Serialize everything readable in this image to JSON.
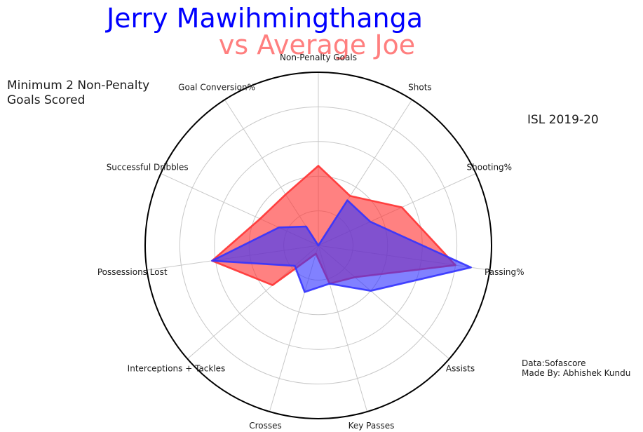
{
  "header": {
    "player_name": "Jerry Mawihmingthanga",
    "comparison": "vs Average Joe",
    "player_color": "#0000ff",
    "comparison_color": "#ff7f7f"
  },
  "notes": {
    "filter": "Minimum 2 Non-Penalty\nGoals Scored",
    "season": "ISL 2019-20",
    "credits": "Data:Sofascore\nMade By: Abhishek Kundu"
  },
  "chart_data": {
    "type": "radar",
    "axes": [
      "Non-Penalty Goals",
      "Shots",
      "Shooting%",
      "Passing%",
      "Assists",
      "Key Passes",
      "Crosses",
      "Interceptions + Tackles",
      "Possessions Lost",
      "Successful Dribbles",
      "Goal Conversion%"
    ],
    "rlim": [
      0,
      1
    ],
    "rings": [
      0.2,
      0.4,
      0.6,
      0.8,
      1.0
    ],
    "grid": true,
    "series": [
      {
        "color": "#ff3333",
        "values": [
          0.46,
          0.34,
          0.53,
          0.8,
          0.28,
          0.23,
          0.05,
          0.35,
          0.62,
          0.37,
          0.35
        ]
      },
      {
        "color": "#3333ff",
        "values": [
          0.0,
          0.31,
          0.33,
          0.89,
          0.4,
          0.23,
          0.28,
          0.18,
          0.62,
          0.25,
          0.13
        ]
      }
    ]
  }
}
